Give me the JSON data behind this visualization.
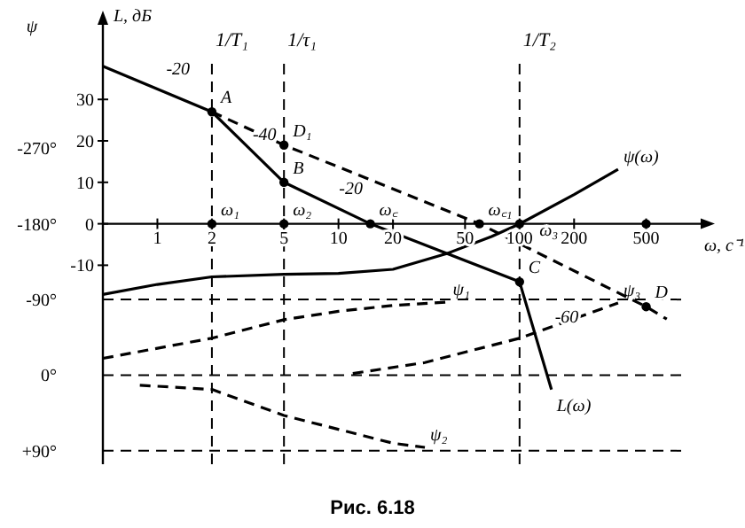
{
  "chart_data": {
    "type": "line",
    "xlabel": "ω, c⁻¹",
    "ylabel": "L, дБ",
    "y2label": "ψ",
    "log": "x",
    "xlim": [
      0.5,
      1000
    ],
    "xticks": [
      1,
      2,
      5,
      10,
      20,
      50,
      100,
      200,
      500
    ],
    "ylim": [
      -58,
      48
    ],
    "yticks": [
      -10,
      0,
      10,
      20,
      30
    ],
    "y2lim": [
      106,
      -417
    ],
    "y2ticks": [
      {
        "value": -270,
        "label": "-270°"
      },
      {
        "value": -180,
        "label": "-180°"
      },
      {
        "value": -90,
        "label": "-90°"
      },
      {
        "value": 0,
        "label": "0°"
      },
      {
        "value": 90,
        "label": "+90°"
      }
    ],
    "grid": false,
    "marker": "none",
    "series": [
      {
        "name": "L(ω)",
        "color": "#000000",
        "x": [
          0.5,
          2,
          5,
          15,
          100,
          150
        ],
        "values": [
          38,
          27,
          10,
          0,
          -14,
          -40
        ]
      },
      {
        "color": "#000000",
        "line_style": "dashed",
        "x": [
          2,
          5,
          60,
          500,
          650
        ],
        "values": [
          27,
          19,
          0,
          -20,
          -23
        ]
      },
      {
        "name": "ψ(ω)",
        "color": "#000000",
        "axis": "y2",
        "x": [
          0.5,
          1,
          2,
          5,
          10,
          20,
          40,
          70,
          100,
          200,
          350
        ],
        "values": [
          -96,
          -108,
          -117,
          -120,
          -121,
          -126,
          -145,
          -165,
          -180,
          -215,
          -245
        ]
      },
      {
        "name": "ψ₁",
        "color": "#000000",
        "axis": "y2",
        "line_style": "dashed",
        "x": [
          0.5,
          2,
          5,
          10,
          20,
          40
        ],
        "values": [
          -20,
          -44,
          -66,
          -76,
          -83,
          -87
        ]
      },
      {
        "name": "ψ₂",
        "color": "#000000",
        "axis": "y2",
        "line_style": "dashed",
        "x": [
          0.8,
          2,
          5,
          20,
          30
        ],
        "values": [
          12,
          17,
          48,
          81,
          86
        ]
      },
      {
        "name": "ψ₃",
        "color": "#000000",
        "axis": "y2",
        "line_style": "dashed",
        "x": [
          12,
          30,
          100,
          350
        ],
        "values": [
          -2,
          -15,
          -44,
          -86
        ]
      },
      {
        "type": "scatter",
        "color": "#000000",
        "marker": "circle",
        "x": [
          2,
          5,
          2,
          5,
          5,
          15,
          60,
          100,
          100,
          500,
          500
        ],
        "values": [
          27,
          10,
          0,
          0,
          19,
          0,
          0,
          0,
          -14,
          0,
          -20
        ]
      }
    ],
    "ref_lines": [
      {
        "axis": "x",
        "value": 2,
        "label": "1/T₁",
        "line_style": "dashed"
      },
      {
        "axis": "x",
        "value": 5,
        "label": "1/τ₁",
        "line_style": "dashed"
      },
      {
        "axis": "x",
        "value": 100,
        "label": "1/T₂",
        "line_style": "dashed"
      },
      {
        "axis": "y2",
        "value": -90,
        "line_style": "dashed"
      },
      {
        "axis": "y2",
        "value": 0,
        "line_style": "dashed"
      },
      {
        "axis": "y2",
        "value": 90,
        "line_style": "dashed"
      }
    ],
    "annotations": [
      {
        "text": "A",
        "x": 2,
        "y": 27
      },
      {
        "text": "B",
        "x": 5,
        "y": 10
      },
      {
        "text": "C",
        "x": 100,
        "y": -14
      },
      {
        "text": "D",
        "x": 500,
        "y": -20
      },
      {
        "text": "D₁",
        "x": 5,
        "y": 19
      },
      {
        "text": "ω₁",
        "x": 2,
        "y": 0
      },
      {
        "text": "ω₂",
        "x": 5,
        "y": 0
      },
      {
        "text": "ω꜀",
        "x": 15,
        "y": 0
      },
      {
        "text": "ω꜀₁",
        "x": 60,
        "y": 0
      },
      {
        "text": "ω₃",
        "x": 115,
        "y": -5
      },
      {
        "text": "-20",
        "x": 1,
        "y": 34
      },
      {
        "text": "-40",
        "x": 3,
        "y": 18
      },
      {
        "text": "-20",
        "x": 9,
        "y": 5
      },
      {
        "text": "-60",
        "x": 140,
        "y": -26
      },
      "Рис. 6.18"
    ]
  }
}
